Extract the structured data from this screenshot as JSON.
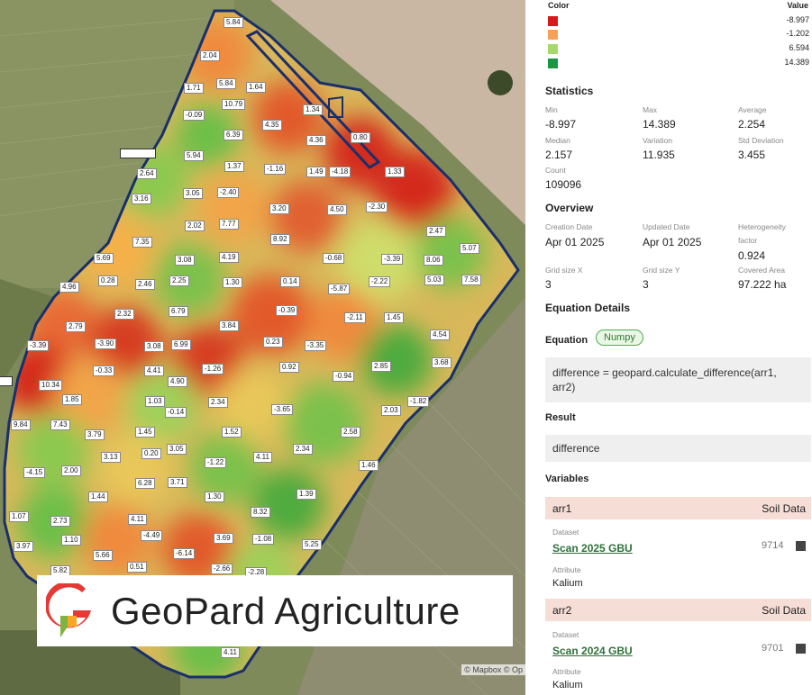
{
  "map": {
    "attribution": "© Mapbox © Op",
    "logo_text": "GeoPard Agriculture",
    "labels": [
      "5.84",
      "2.04",
      "1.71",
      "5.84",
      "1.64",
      "-0.09",
      "10.79",
      "1.34",
      "6.39",
      "4.35",
      "4.36",
      "0.80",
      "2.64",
      "5.94",
      "1.37",
      "-1.16",
      "1.49",
      "-4.18",
      "1.33",
      "3.16",
      "3.05",
      "-2.40",
      "3.20",
      "4.50",
      "-2.30",
      "2.02",
      "7.77",
      "8.92",
      "2.47",
      "7.35",
      "5.69",
      "3.08",
      "4.19",
      "-0.68",
      "-3.39",
      "8.06",
      "5.07",
      "0.28",
      "2.46",
      "2.25",
      "1.30",
      "0.14",
      "-5.87",
      "-2.22",
      "5.03",
      "7.58",
      "4.96",
      "2.32",
      "6.79",
      "-0.39",
      "-2.11",
      "1.45",
      "2.79",
      "3.84",
      "0.23",
      "-3.35",
      "4.54",
      "-3.39",
      "-3.90",
      "3.08",
      "6.99",
      "-1.26",
      "0.92",
      "-0.94",
      "2.85",
      "3.68",
      "10.34",
      "4.90",
      "-0.33",
      "4.41",
      "1.85",
      "1.03",
      "-0.14",
      "2.34",
      "-3.65",
      "2.03",
      "-1.82",
      "9.84",
      "7.43",
      "3.79",
      "1.45",
      "1.52",
      "2.58",
      "3.13",
      "0.20",
      "3.05",
      "-1.22",
      "4.11",
      "2.34",
      "1.46",
      "-4.15",
      "2.00",
      "6.28",
      "3.71",
      "1.30",
      "1.39",
      "1.44",
      "8.32",
      "1.07",
      "2.73",
      "4.11",
      "-4.49",
      "3.69",
      "-1.08",
      "5.25",
      "3.97",
      "1.10",
      "5.66",
      "-6.14",
      "5.82",
      "0.51",
      "-2.66",
      "-2.28",
      "4.11"
    ],
    "icons": {
      "brand": "geopard-logo-icon"
    }
  },
  "legend": {
    "color_header": "Color",
    "value_header": "Value",
    "rows": [
      {
        "color": "#d7191c",
        "value": "-8.997"
      },
      {
        "color": "#f5a15a",
        "value": "-1.202"
      },
      {
        "color": "#a6d96a",
        "value": "6.594"
      },
      {
        "color": "#1a9641",
        "value": "14.389"
      }
    ]
  },
  "statistics": {
    "title": "Statistics",
    "min_label": "Min",
    "min": "-8.997",
    "max_label": "Max",
    "max": "14.389",
    "avg_label": "Average",
    "avg": "2.254",
    "median_label": "Median",
    "median": "2.157",
    "variation_label": "Variation",
    "variation": "11.935",
    "std_label": "Std Deviation",
    "std": "3.455",
    "count_label": "Count",
    "count": "109096"
  },
  "overview": {
    "title": "Overview",
    "creation_label": "Creation Date",
    "creation": "Apr 01 2025",
    "updated_label": "Updated Date",
    "updated": "Apr 01 2025",
    "hetero_label_1": "Heterogeneity",
    "hetero_label_2": "factor",
    "hetero": "0.924",
    "gridx_label": "Grid size X",
    "gridx": "3",
    "gridy_label": "Grid size Y",
    "gridy": "3",
    "area_label": "Covered Area",
    "area": "97.222 ha"
  },
  "equation": {
    "title": "Equation Details",
    "label": "Equation",
    "pill": "Numpy",
    "code_line1": "difference = geopard.calculate_difference(arr1,",
    "code_line2": "arr2)",
    "result_label": "Result",
    "result": "difference",
    "variables_label": "Variables",
    "vars": [
      {
        "name": "arr1",
        "type": "Soil Data",
        "dataset_label": "Dataset",
        "dataset": "Scan 2025 GBU",
        "dataset_id": "9714",
        "attribute_label": "Attribute",
        "attribute": "Kalium"
      },
      {
        "name": "arr2",
        "type": "Soil Data",
        "dataset_label": "Dataset",
        "dataset": "Scan 2024 GBU",
        "dataset_id": "9701",
        "attribute_label": "Attribute",
        "attribute": "Kalium"
      }
    ]
  }
}
